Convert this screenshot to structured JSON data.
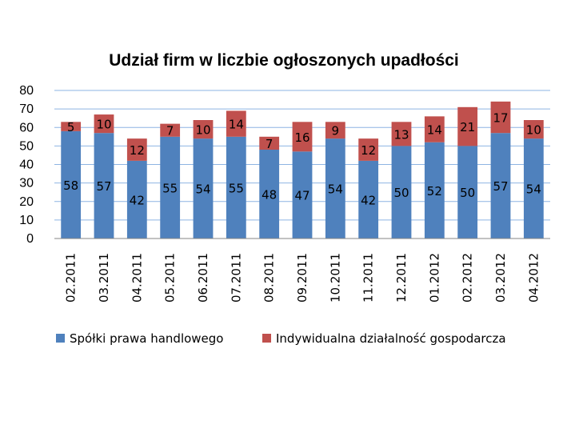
{
  "chart_data": {
    "type": "bar",
    "stacked": true,
    "title": "Udział firm w liczbie ogłoszonych upadłości",
    "xlabel": "",
    "ylabel": "",
    "ylim": [
      0,
      80
    ],
    "yticks": [
      "0",
      "10",
      "20",
      "30",
      "40",
      "50",
      "60",
      "70",
      "80"
    ],
    "grid": true,
    "legend_position": "bottom",
    "categories": [
      "02.2011",
      "03.2011",
      "04.2011",
      "05.2011",
      "06.2011",
      "07.2011",
      "08.2011",
      "09.2011",
      "10.2011",
      "11.2011",
      "12.2011",
      "01.2012",
      "02.2012",
      "03.2012",
      "04.2012"
    ],
    "series": [
      {
        "name": "Spółki prawa handlowego",
        "color": "#4F81BD",
        "values": [
          58,
          57,
          42,
          55,
          54,
          55,
          48,
          47,
          54,
          42,
          50,
          52,
          50,
          57,
          54
        ]
      },
      {
        "name": "Indywidualna działalność gospodarcza",
        "color": "#C0504D",
        "values": [
          5,
          10,
          12,
          7,
          10,
          14,
          7,
          16,
          9,
          12,
          13,
          14,
          21,
          17,
          10
        ]
      }
    ]
  }
}
